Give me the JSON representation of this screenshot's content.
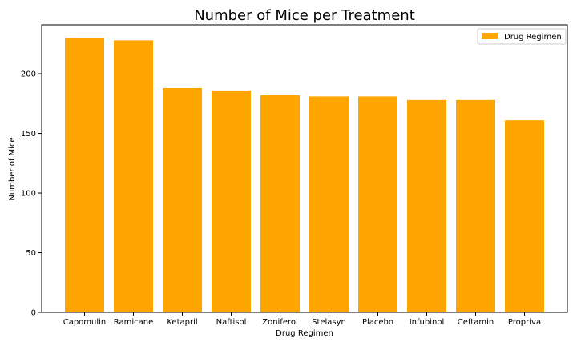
{
  "chart_data": {
    "type": "bar",
    "title": "Number of Mice per Treatment",
    "xlabel": "Drug Regimen",
    "ylabel": "Number of Mice",
    "categories": [
      "Capomulin",
      "Ramicane",
      "Ketapril",
      "Naftisol",
      "Zoniferol",
      "Stelasyn",
      "Placebo",
      "Infubinol",
      "Ceftamin",
      "Propriva"
    ],
    "series": [
      {
        "name": "Drug Regimen",
        "values": [
          230,
          228,
          188,
          186,
          182,
          181,
          181,
          178,
          178,
          161
        ],
        "color": "#ffa500"
      }
    ],
    "ylim": [
      0,
      241
    ],
    "yticks": [
      0,
      50,
      100,
      150,
      200
    ],
    "grid": false,
    "legend": {
      "position": "top-right",
      "entries": [
        "Drug Regimen"
      ]
    }
  }
}
